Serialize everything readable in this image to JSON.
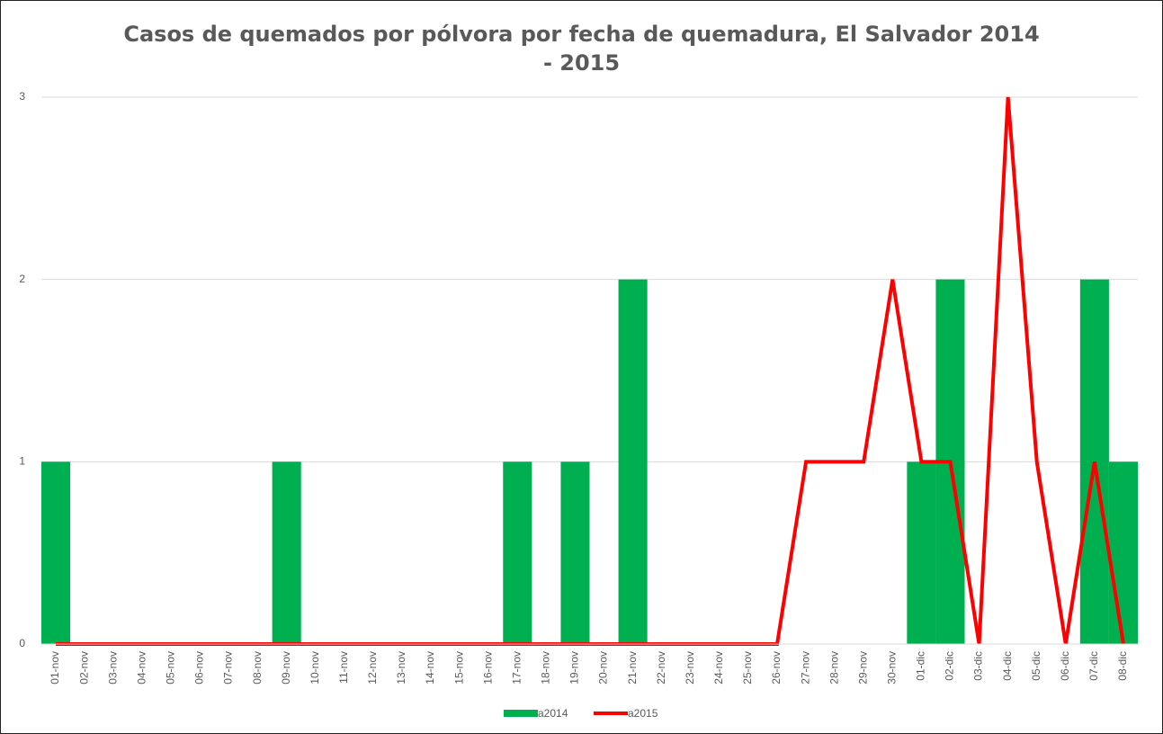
{
  "chart_data": {
    "type": "bar-line",
    "title": "Casos de quemados por pólvora por fecha de quemadura, El Salvador 2014 - 2015",
    "categories": [
      "01-nov",
      "02-nov",
      "03-nov",
      "04-nov",
      "05-nov",
      "06-nov",
      "07-nov",
      "08-nov",
      "09-nov",
      "10-nov",
      "11-nov",
      "12-nov",
      "13-nov",
      "14-nov",
      "15-nov",
      "16-nov",
      "17-nov",
      "18-nov",
      "19-nov",
      "20-nov",
      "21-nov",
      "22-nov",
      "23-nov",
      "24-nov",
      "25-nov",
      "26-nov",
      "27-nov",
      "28-nov",
      "29-nov",
      "30-nov",
      "01-dic",
      "02-dic",
      "03-dic",
      "04-dic",
      "05-dic",
      "06-dic",
      "07-dic",
      "08-dic"
    ],
    "series": [
      {
        "name": "a2014",
        "type": "bar",
        "color": "#00b050",
        "values": [
          1,
          0,
          0,
          0,
          0,
          0,
          0,
          0,
          1,
          0,
          0,
          0,
          0,
          0,
          0,
          0,
          1,
          0,
          1,
          0,
          2,
          0,
          0,
          0,
          0,
          0,
          0,
          0,
          0,
          0,
          1,
          2,
          0,
          0,
          0,
          0,
          2,
          1
        ]
      },
      {
        "name": "a2015",
        "type": "line",
        "color": "#ff0000",
        "values": [
          0,
          0,
          0,
          0,
          0,
          0,
          0,
          0,
          0,
          0,
          0,
          0,
          0,
          0,
          0,
          0,
          0,
          0,
          0,
          0,
          0,
          0,
          0,
          0,
          0,
          0,
          1,
          1,
          1,
          2,
          1,
          1,
          0,
          3,
          1,
          0,
          1,
          0
        ]
      }
    ],
    "ylim": [
      0,
      3
    ],
    "yticks": [
      0,
      1,
      2,
      3
    ],
    "grid": true
  }
}
